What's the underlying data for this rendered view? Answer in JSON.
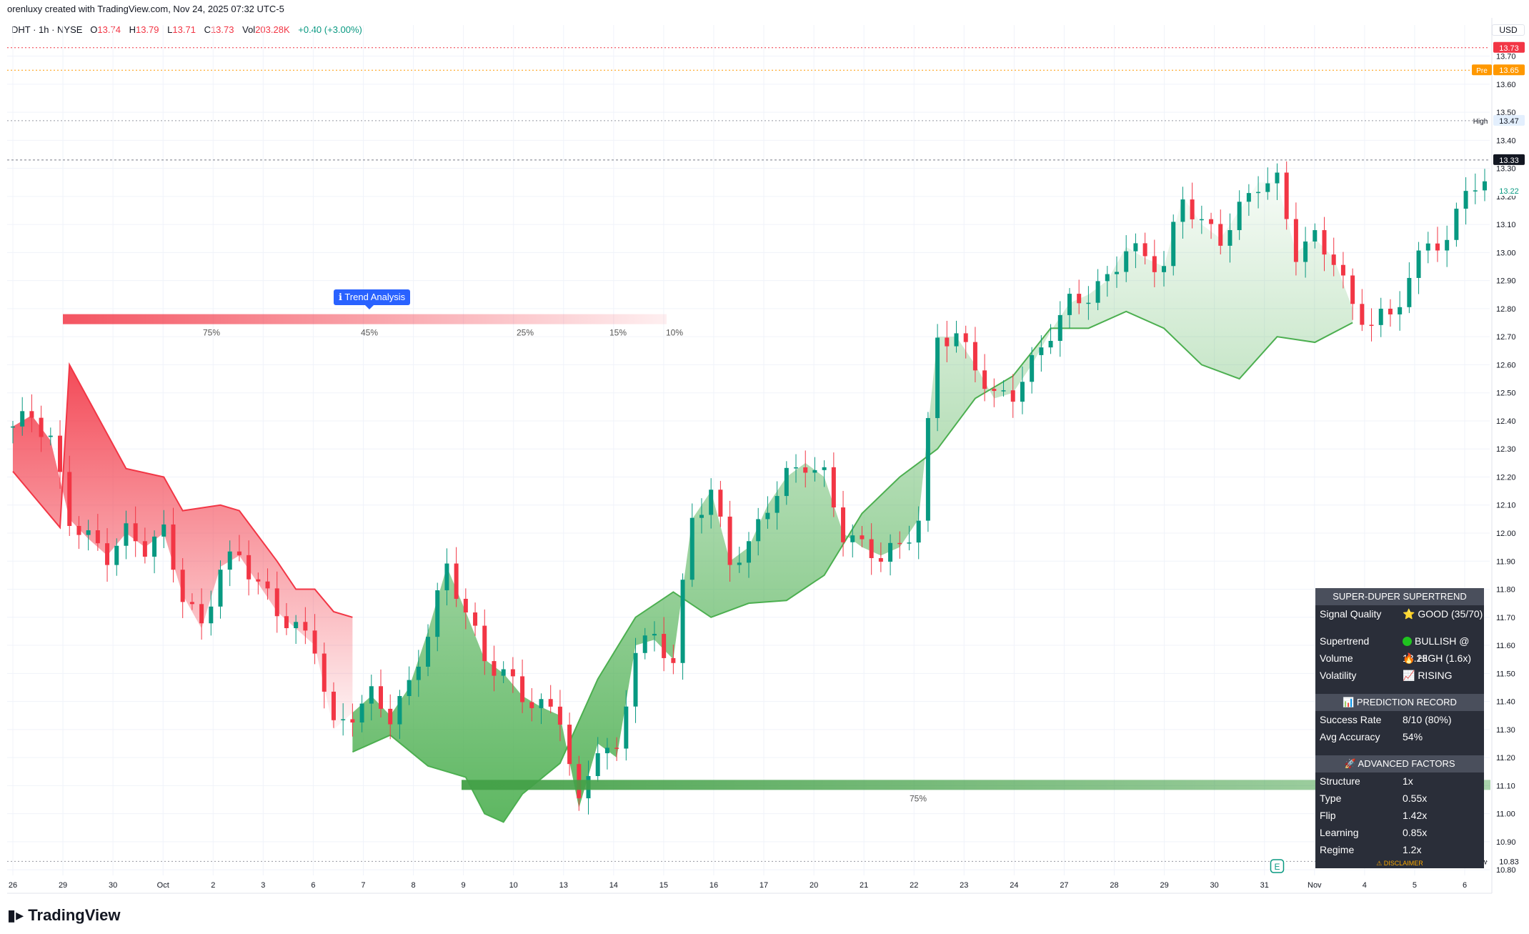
{
  "header": {
    "credit": "orenluxy created with TradingView.com, Nov 24, 2025 07:32 UTC-5"
  },
  "legend": {
    "symbol": "DHT · 1h · NYSE",
    "o_label": "O",
    "o": "13.74",
    "h_label": "H",
    "h": "13.79",
    "l_label": "L",
    "l": "13.71",
    "c_label": "C",
    "c": "13.73",
    "vol_label": "Vol",
    "vol": "203.28K",
    "change": "+0.40 (+3.00%)"
  },
  "currency": "USD",
  "colors": {
    "up": "#089981",
    "down": "#f23645",
    "bull_fill": "#4caf50",
    "bear_fill": "#f23645",
    "tooltip": "#2962ff",
    "panel": "#2a2e39"
  },
  "tooltip": {
    "text": "ℹ Trend Analysis"
  },
  "price_tags": {
    "last": "13.73",
    "pre_label": "Pre",
    "pre": "13.65",
    "high_label": "High",
    "high": "13.47",
    "cross": "13.33",
    "current": "13.22",
    "low_label": "Low",
    "low": "10.83"
  },
  "earnings_icon": "E",
  "watermark": "TradingView",
  "panel": {
    "title": "SUPER-DUPER SUPERTREND",
    "rows1": [
      {
        "k": "Signal Quality",
        "v": "⭐ GOOD (35/70)"
      }
    ],
    "rows2": [
      {
        "k": "Supertrend",
        "v": "BULLISH @ 13.23"
      },
      {
        "k": "Volume",
        "v": "🔥 HIGH (1.6x)"
      },
      {
        "k": "Volatility",
        "v": "📈 RISING"
      }
    ],
    "prediction_title": "📊 PREDICTION RECORD",
    "rows3": [
      {
        "k": "Success Rate",
        "v": "8/10 (80%)"
      },
      {
        "k": "Avg Accuracy",
        "v": "54%"
      }
    ],
    "advanced_title": "🚀 ADVANCED FACTORS",
    "rows4": [
      {
        "k": "Structure",
        "v": "1x"
      },
      {
        "k": "Type",
        "v": "0.55x"
      },
      {
        "k": "Flip",
        "v": "1.42x"
      },
      {
        "k": "Learning",
        "v": "0.85x"
      },
      {
        "k": "Regime",
        "v": "1.2x"
      }
    ],
    "disclaimer": "⚠ DISCLAIMER"
  },
  "chart_data": {
    "type": "candlestick",
    "ylim": [
      10.78,
      13.76
    ],
    "yticks": [
      10.8,
      10.9,
      11.0,
      11.1,
      11.2,
      11.3,
      11.4,
      11.5,
      11.6,
      11.7,
      11.8,
      11.9,
      12.0,
      12.1,
      12.2,
      12.3,
      12.4,
      12.5,
      12.6,
      12.7,
      12.8,
      12.9,
      13.0,
      13.1,
      13.2,
      13.3,
      13.4,
      13.5,
      13.6,
      13.7
    ],
    "xticks": [
      "26",
      "29",
      "30",
      "Oct",
      "2",
      "3",
      "6",
      "7",
      "8",
      "9",
      "10",
      "13",
      "14",
      "15",
      "16",
      "17",
      "20",
      "21",
      "22",
      "23",
      "24",
      "27",
      "28",
      "29",
      "30",
      "31",
      "Nov",
      "4",
      "5",
      "6"
    ],
    "price_path": [
      [
        0,
        12.38
      ],
      [
        2,
        12.42
      ],
      [
        4,
        12.33
      ],
      [
        6,
        12.05
      ],
      [
        8,
        11.98
      ],
      [
        10,
        11.92
      ],
      [
        12,
        12.0
      ],
      [
        14,
        11.95
      ],
      [
        16,
        12.0
      ],
      [
        18,
        11.78
      ],
      [
        20,
        11.66
      ],
      [
        22,
        11.88
      ],
      [
        24,
        11.92
      ],
      [
        26,
        11.82
      ],
      [
        28,
        11.72
      ],
      [
        30,
        11.66
      ],
      [
        32,
        11.6
      ],
      [
        34,
        11.3
      ],
      [
        36,
        11.36
      ],
      [
        38,
        11.42
      ],
      [
        40,
        11.35
      ],
      [
        42,
        11.45
      ],
      [
        44,
        11.65
      ],
      [
        46,
        11.88
      ],
      [
        48,
        11.72
      ],
      [
        50,
        11.55
      ],
      [
        52,
        11.5
      ],
      [
        54,
        11.42
      ],
      [
        56,
        11.38
      ],
      [
        58,
        11.35
      ],
      [
        60,
        11.02
      ],
      [
        62,
        11.25
      ],
      [
        64,
        11.2
      ],
      [
        66,
        11.6
      ],
      [
        68,
        11.62
      ],
      [
        70,
        11.55
      ],
      [
        72,
        12.05
      ],
      [
        74,
        12.15
      ],
      [
        76,
        11.9
      ],
      [
        78,
        11.95
      ],
      [
        80,
        12.1
      ],
      [
        82,
        12.2
      ],
      [
        84,
        12.25
      ],
      [
        86,
        12.2
      ],
      [
        88,
        12.0
      ],
      [
        90,
        11.95
      ],
      [
        92,
        11.92
      ],
      [
        94,
        11.95
      ],
      [
        96,
        12.05
      ],
      [
        98,
        12.7
      ],
      [
        100,
        12.7
      ],
      [
        102,
        12.6
      ],
      [
        104,
        12.48
      ],
      [
        106,
        12.5
      ],
      [
        108,
        12.6
      ],
      [
        110,
        12.72
      ],
      [
        112,
        12.82
      ],
      [
        114,
        12.85
      ],
      [
        116,
        12.9
      ],
      [
        118,
        13.02
      ],
      [
        120,
        12.98
      ],
      [
        122,
        12.95
      ],
      [
        124,
        13.2
      ],
      [
        126,
        13.1
      ],
      [
        128,
        13.05
      ],
      [
        130,
        13.15
      ],
      [
        132,
        13.25
      ],
      [
        134,
        13.25
      ],
      [
        136,
        13.0
      ],
      [
        138,
        13.05
      ],
      [
        140,
        12.98
      ],
      [
        142,
        12.8
      ],
      [
        144,
        12.75
      ],
      [
        146,
        12.78
      ],
      [
        148,
        12.9
      ],
      [
        150,
        13.05
      ],
      [
        152,
        13.02
      ],
      [
        154,
        13.25
      ],
      [
        156,
        13.22
      ]
    ],
    "supertrend": {
      "bear": [
        [
          0,
          12.22
        ],
        [
          5,
          12.02
        ],
        [
          6,
          12.6
        ],
        [
          12,
          12.23
        ],
        [
          16,
          12.2
        ],
        [
          18,
          12.08
        ],
        [
          22,
          12.1
        ],
        [
          24,
          12.08
        ],
        [
          28,
          11.9
        ],
        [
          30,
          11.8
        ],
        [
          32,
          11.8
        ],
        [
          34,
          11.72
        ],
        [
          36,
          11.7
        ]
      ],
      "bull": [
        [
          36,
          11.22
        ],
        [
          40,
          11.28
        ],
        [
          44,
          11.17
        ],
        [
          48,
          11.13
        ],
        [
          50,
          11.0
        ],
        [
          52,
          10.97
        ],
        [
          54,
          11.07
        ],
        [
          58,
          11.18
        ],
        [
          62,
          11.48
        ],
        [
          66,
          11.7
        ],
        [
          70,
          11.79
        ],
        [
          74,
          11.7
        ],
        [
          78,
          11.75
        ],
        [
          82,
          11.76
        ],
        [
          86,
          11.85
        ],
        [
          90,
          12.07
        ],
        [
          94,
          12.2
        ],
        [
          98,
          12.3
        ],
        [
          102,
          12.48
        ],
        [
          106,
          12.56
        ],
        [
          110,
          12.73
        ],
        [
          114,
          12.73
        ],
        [
          118,
          12.79
        ],
        [
          122,
          12.73
        ],
        [
          126,
          12.6
        ],
        [
          130,
          12.55
        ],
        [
          134,
          12.7
        ],
        [
          138,
          12.68
        ],
        [
          142,
          12.75
        ]
      ]
    },
    "profile_bars": [
      {
        "dir": "bear",
        "price": 12.76,
        "levels": [
          "75%",
          "45%",
          "25%",
          "15%",
          "10%"
        ]
      },
      {
        "dir": "bull",
        "price": 11.1,
        "levels": [
          "75%"
        ]
      }
    ]
  }
}
